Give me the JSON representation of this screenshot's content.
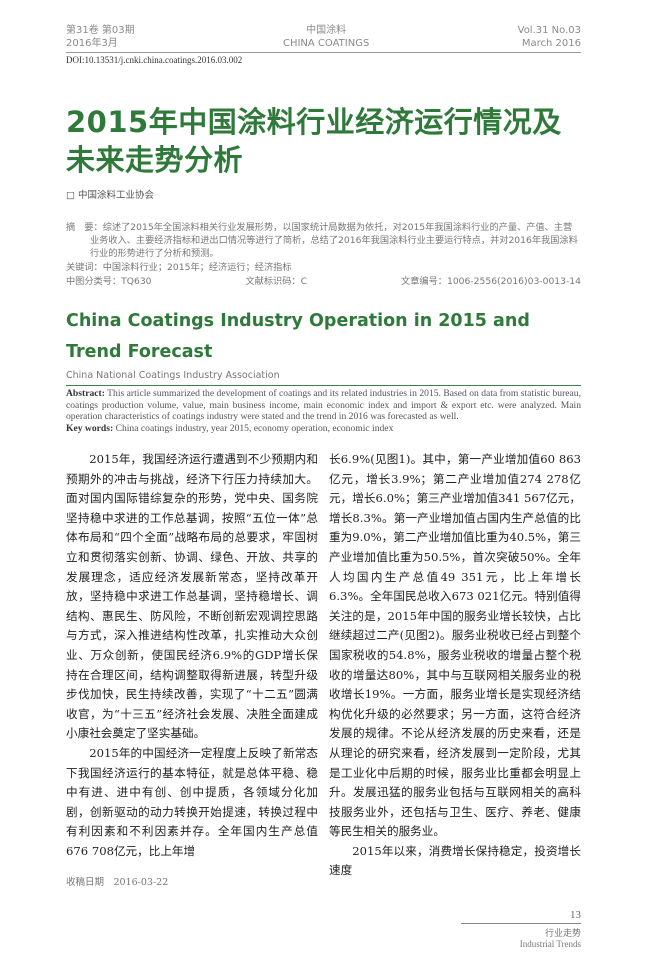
{
  "header": {
    "volume_cn": "第31卷 第03期",
    "date_cn": "2016年3月",
    "journal_cn": "中国涂料",
    "journal_en": "CHINA COATINGS",
    "volume_en": "Vol.31 No.03",
    "date_en": "March 2016",
    "doi": "DOI:10.13531/j.cnki.china.coatings.2016.03.002"
  },
  "title_cn": "2015年中国涂料行业经济运行情况及未来走势分析",
  "author_cn": "□ 中国涂料工业协会",
  "abstract_cn": {
    "label": "摘　要：",
    "text": "综述了2015年全国涂料相关行业发展形势，以国家统计局数据为依托，对2015年我国涂料行业的产量、产值、主营业务收入、主要经济指标和进出口情况等进行了简析，总结了2016年我国涂料行业主要运行特点，并对2016年我国涂料行业的形势进行了分析和预测。",
    "keywords_label": "关键词：",
    "keywords": "中国涂料行业；2015年；经济运行；经济指标",
    "clc_label": "中图分类号：",
    "clc": "TQ630",
    "doc_code_label": "文献标识码：",
    "doc_code": "C",
    "article_no_label": "文章编号：",
    "article_no": "1006-2556(2016)03-0013-14"
  },
  "title_en": "China Coatings Industry Operation in 2015 and Trend Forecast",
  "org_en": "China National Coatings Industry Association",
  "abstract_en": {
    "label": "Abstract:",
    "text": " This article summarized the development of coatings and its related industries in 2015. Based on data from statistic bureau, coatings production volume, value, main business income, main economic index and import & export etc. were analyzed. Main operation characteristics of coatings industry were stated and the trend in 2016 was forecasted as well.",
    "keywords_label": "Key words:",
    "keywords": " China coatings industry, year 2015, economy operation, economic index"
  },
  "body": {
    "left": [
      "2015年，我国经济运行遭遇到不少预期内和预期外的冲击与挑战，经济下行压力持续加大。面对国内国际错综复杂的形势，党中央、国务院坚持稳中求进的工作总基调，按照“五位一体”总体布局和“四个全面”战略布局的总要求，牢固树立和贯彻落实创新、协调、绿色、开放、共享的发展理念，适应经济发展新常态，坚持改革开放，坚持稳中求进工作总基调，坚持稳增长、调结构、惠民生、防风险，不断创新宏观调控思路与方式，深入推进结构性改革，扎实推动大众创业、万众创新，使国民经济6.9%的GDP增长保持在合理区间，结构调整取得新进展，转型升级步伐加快，民生持续改善，实现了“十二五”圆满收官，为“十三五”经济社会发展、决胜全面建成小康社会奠定了坚实基础。",
      "2015年的中国经济一定程度上反映了新常态下我国经济运行的基本特征，就是总体平稳、稳中有进、进中有创、创中提质，各领域分化加剧，创新驱动的动力转换开始提速，转换过程中有利因素和不利因素并存。全年国内生产总值676 708亿元，比上年增"
    ],
    "right": [
      "长6.9%(见图1)。其中，第一产业增加值60 863亿元，增长3.9%；第二产业增加值274 278亿元，增长6.0%；第三产业增加值341 567亿元，增长8.3%。第一产业增加值占国内生产总值的比重为9.0%，第二产业增加值比重为40.5%，第三产业增加值比重为50.5%，首次突破50%。全年人均国内生产总值49 351元，比上年增长6.3%。全年国民总收入673 021亿元。特别值得关注的是，2015年中国的服务业增长较快，占比继续超过二产(见图2)。服务业税收已经占到整个国家税收的54.8%，服务业税收的增量占整个税收的增量达80%，其中与互联网相关服务业的税收增长19%。一方面，服务业增长是实现经济结构优化升级的必然要求；另一方面，这符合经济发展的规律。不论从经济发展的历史来看，还是从理论的研究来看，经济发展到一定阶段，尤其是工业化中后期的时候，服务业比重都会明显上升。发展迅猛的服务业包括与互联网相关的高科技服务业外，还包括与卫生、医疗、养老、健康等民生相关的服务业。",
      "2015年以来，消费增长保持稳定，投资增长速度"
    ]
  },
  "received": "收稿日期　2016-03-22",
  "footer": {
    "page": "13",
    "section_cn": "行业走势",
    "section_en": "Industrial Trends"
  }
}
